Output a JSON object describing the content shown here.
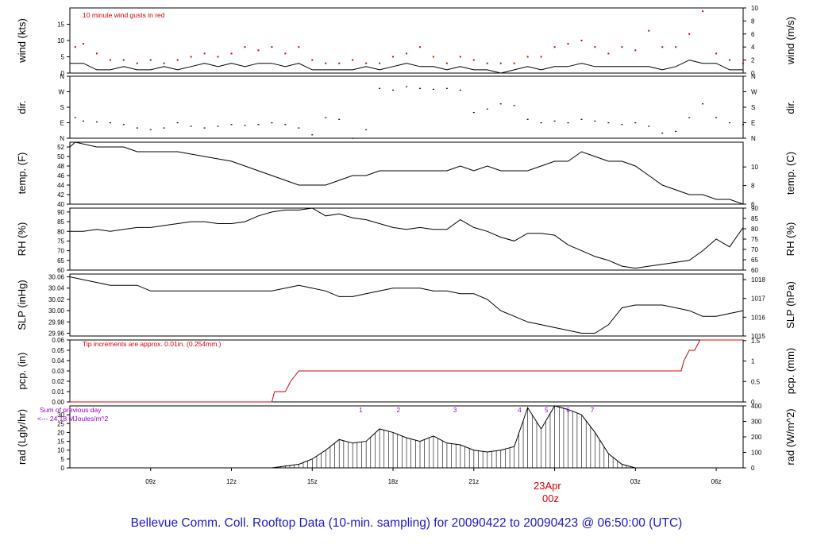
{
  "title": "Bellevue Comm. Coll. Rooftop Data (10-min. sampling) for 20090422  to  20090423 @ 06:50:00  (UTC)",
  "colors": {
    "frame": "#000000",
    "red": "#dd0000",
    "purple": "#9900cc",
    "title_blue": "#1a1acc"
  },
  "x_axis": {
    "hour_ticks": [
      "09z",
      "12z",
      "15z",
      "18z",
      "21z",
      "00z",
      "03z",
      "06z"
    ],
    "date_label": "23Apr",
    "date_tick": "00z"
  },
  "chart_data": [
    {
      "type": "line",
      "id": "wind",
      "ylabel": "wind (kts)",
      "ylabel_right": "wind (m/s)",
      "ylim": [
        0,
        20
      ],
      "yticks": [
        "0",
        "5",
        "10",
        "15"
      ],
      "yticks_right": [
        "0",
        "2",
        "4",
        "6",
        "8",
        "10"
      ],
      "annotation": "10  minute wind gusts in red",
      "series": [
        {
          "name": "wind speed (kts)",
          "hours": [
            6,
            6.5,
            7,
            7.5,
            8,
            8.5,
            9,
            9.5,
            10,
            10.5,
            11,
            11.5,
            12,
            12.5,
            13,
            13.5,
            14,
            14.5,
            15,
            15.5,
            16,
            16.5,
            17,
            17.5,
            18,
            18.5,
            19,
            19.5,
            20,
            20.5,
            21,
            21.5,
            22,
            22.5,
            23,
            23.5,
            24,
            24.5,
            25,
            25.5,
            26,
            26.5,
            27,
            27.5,
            28,
            28.5,
            29,
            29.5,
            30,
            30.5,
            31,
            31
          ],
          "values": [
            3,
            3,
            1,
            1,
            2,
            1,
            1,
            2,
            1,
            2,
            3,
            2,
            3,
            2,
            3,
            3,
            2,
            3,
            1,
            1,
            1,
            1,
            2,
            1,
            2,
            3,
            2,
            2,
            1,
            2,
            1,
            1,
            0,
            1,
            2,
            1,
            2,
            2,
            3,
            2,
            2,
            2,
            2,
            2,
            1,
            2,
            4,
            3,
            3,
            1,
            1,
            1
          ]
        },
        {
          "name": "10 minute wind gusts (kts)",
          "hours": [
            6.2,
            6.5,
            7,
            7.5,
            8,
            8.5,
            9,
            9.5,
            10,
            10.5,
            11,
            11.5,
            12,
            12.5,
            13,
            13.5,
            14,
            14.5,
            15,
            15.5,
            16,
            16.5,
            17,
            17.5,
            18,
            18.5,
            19,
            19.5,
            20,
            20.5,
            21,
            21.5,
            22,
            22.5,
            23,
            23.5,
            24,
            24.5,
            25,
            25.5,
            26,
            26.5,
            27,
            27.5,
            28,
            28.5,
            29,
            29.5,
            30,
            30.5,
            31
          ],
          "values": [
            8,
            9,
            6,
            4,
            4,
            3,
            4,
            3,
            4,
            5,
            6,
            5,
            6,
            8,
            7,
            8,
            6,
            8,
            4,
            3,
            3,
            4,
            3,
            3,
            5,
            6,
            8,
            5,
            3,
            5,
            4,
            3,
            3,
            3,
            5,
            5,
            8,
            9,
            10,
            8,
            6,
            8,
            7,
            13,
            8,
            8,
            12,
            19,
            6,
            4,
            3
          ]
        }
      ]
    },
    {
      "type": "scatter",
      "id": "dir",
      "ylabel": "dir.",
      "ylabel_right": "dir.",
      "ylim": [
        0,
        360
      ],
      "yticks": [
        "N",
        "E",
        "S",
        "W",
        "N"
      ],
      "series": [
        {
          "name": "wind direction (deg)",
          "hours": [
            6.2,
            6.5,
            7,
            7.5,
            8,
            8.5,
            9,
            9.5,
            10,
            10.5,
            11,
            11.5,
            12,
            12.5,
            13,
            13.5,
            14,
            14.5,
            15,
            15.5,
            16,
            16.5,
            17,
            17.5,
            18,
            18.5,
            19,
            19.5,
            20,
            20.5,
            21,
            21.5,
            22,
            22.5,
            23,
            23.5,
            24,
            24.5,
            25,
            25.5,
            26,
            26.5,
            27,
            27.5,
            28,
            28.5,
            29,
            29.5,
            30,
            30.5,
            31
          ],
          "values": [
            120,
            100,
            95,
            90,
            80,
            60,
            50,
            60,
            90,
            70,
            60,
            70,
            80,
            75,
            80,
            90,
            80,
            60,
            20,
            120,
            110,
            0,
            50,
            290,
            280,
            300,
            290,
            285,
            290,
            280,
            150,
            170,
            200,
            190,
            110,
            90,
            100,
            90,
            110,
            100,
            90,
            80,
            90,
            70,
            30,
            40,
            120,
            200,
            120,
            90,
            80
          ]
        }
      ]
    },
    {
      "type": "line",
      "id": "temp",
      "ylabel": "temp. (F)",
      "ylabel_right": "temp. (C)",
      "ylim": [
        40,
        53
      ],
      "yticks": [
        "40",
        "42",
        "44",
        "46",
        "48",
        "50",
        "52"
      ],
      "yticks_right": [
        "6",
        "8",
        "10"
      ],
      "series": [
        {
          "name": "temperature (F)",
          "hours": [
            6,
            6.2,
            7,
            8,
            8.5,
            10,
            11,
            12,
            12.5,
            13,
            13.5,
            14,
            14.5,
            15,
            15.5,
            16,
            16.5,
            17,
            17.5,
            18,
            18.5,
            19,
            19.5,
            20,
            20.5,
            21,
            21.5,
            22,
            22.5,
            23,
            23.5,
            24,
            24.5,
            25,
            25.5,
            26,
            26.5,
            27,
            27.5,
            28,
            28.5,
            29,
            29.5,
            30,
            30.5,
            31
          ],
          "values": [
            52,
            53,
            52,
            52,
            51,
            51,
            50,
            49,
            48,
            47,
            46,
            45,
            44,
            44,
            44,
            45,
            46,
            46,
            47,
            47,
            47,
            47,
            47,
            47,
            48,
            47,
            48,
            47,
            47,
            47,
            48,
            49,
            49,
            51,
            50,
            49,
            49,
            48,
            46,
            44,
            43,
            42,
            42,
            41,
            41,
            40
          ]
        }
      ]
    },
    {
      "type": "line",
      "id": "rh",
      "ylabel": "RH (%)",
      "ylabel_right": "RH (%)",
      "ylim": [
        60,
        92
      ],
      "yticks": [
        "60",
        "65",
        "70",
        "75",
        "80",
        "85",
        "90"
      ],
      "yticks_right": [
        "60",
        "65",
        "70",
        "75",
        "80",
        "85",
        "90"
      ],
      "series": [
        {
          "name": "relative humidity (%)",
          "hours": [
            6,
            6.5,
            7,
            7.5,
            8,
            8.5,
            9,
            9.5,
            10,
            10.5,
            11,
            11.5,
            12,
            12.5,
            13,
            13.5,
            14,
            14.5,
            15,
            15.5,
            16,
            16.5,
            17,
            17.5,
            18,
            18.5,
            19,
            19.5,
            20,
            20.5,
            21,
            21.5,
            22,
            22.5,
            23,
            23.5,
            24,
            24.5,
            25,
            25.5,
            26,
            26.5,
            27,
            27.5,
            28,
            28.5,
            29,
            29.5,
            30,
            30.5,
            31
          ],
          "values": [
            80,
            80,
            81,
            80,
            81,
            82,
            82,
            83,
            84,
            85,
            85,
            84,
            84,
            85,
            88,
            90,
            91,
            91,
            92,
            88,
            89,
            87,
            86,
            84,
            82,
            81,
            82,
            81,
            81,
            86,
            82,
            80,
            77,
            75,
            79,
            79,
            78,
            73,
            70,
            67,
            65,
            62,
            61,
            62,
            63,
            64,
            65,
            70,
            76,
            72,
            82
          ]
        }
      ]
    },
    {
      "type": "line",
      "id": "slp",
      "ylabel": "SLP (inHg)",
      "ylabel_right": "SLP (hPa)",
      "ylim": [
        29.955,
        30.065
      ],
      "yticks": [
        "29.96",
        "29.98",
        "30.00",
        "30.02",
        "30.04",
        "30.06"
      ],
      "yticks_right": [
        "1015",
        "1016",
        "1017",
        "1018"
      ],
      "series": [
        {
          "name": "sea level pressure (inHg)",
          "hours": [
            6,
            6.5,
            7,
            7.5,
            8,
            8.5,
            9,
            9.5,
            10,
            10.5,
            11,
            11.5,
            12,
            12.5,
            13,
            13.5,
            14,
            14.5,
            15,
            15.5,
            16,
            16.5,
            17,
            17.5,
            18,
            18.5,
            19,
            19.5,
            20,
            20.5,
            21,
            21.5,
            22,
            22.5,
            23,
            23.5,
            24,
            24.5,
            25,
            25.5,
            26,
            26.5,
            27,
            27.5,
            28,
            28.5,
            29,
            29.5,
            30,
            30.5,
            31
          ],
          "values": [
            30.06,
            30.055,
            30.05,
            30.045,
            30.045,
            30.045,
            30.035,
            30.035,
            30.035,
            30.035,
            30.035,
            30.035,
            30.035,
            30.035,
            30.035,
            30.035,
            30.04,
            30.045,
            30.04,
            30.035,
            30.025,
            30.025,
            30.03,
            30.035,
            30.04,
            30.04,
            30.04,
            30.035,
            30.035,
            30.03,
            30.03,
            30.02,
            30.0,
            29.99,
            29.98,
            29.975,
            29.97,
            29.965,
            29.96,
            29.96,
            29.975,
            30.005,
            30.01,
            30.01,
            30.01,
            30.005,
            30.0,
            29.99,
            29.99,
            29.995,
            30.0
          ]
        }
      ]
    },
    {
      "type": "line",
      "id": "pcp",
      "ylabel": "pcp. (in)",
      "ylabel_right": "pcp. (mm)",
      "ylim": [
        0,
        0.06
      ],
      "yticks": [
        "0.00",
        "0.01",
        "0.02",
        "0.03",
        "0.04",
        "0.05",
        "0.06"
      ],
      "yticks_right": [
        "0",
        "0.5",
        "1",
        "1.5"
      ],
      "annotation": "Tip increments are approx. 0.01in. (0.254mm.)",
      "series": [
        {
          "name": "precipitation (in)",
          "hours": [
            6,
            13.5,
            13.6,
            13.7,
            14,
            14.2,
            14.5,
            28.7,
            28.8,
            29.0,
            29.2,
            29.4,
            29.8,
            31
          ],
          "values": [
            0,
            0,
            0.01,
            0.01,
            0.01,
            0.02,
            0.03,
            0.03,
            0.04,
            0.05,
            0.05,
            0.06,
            0.06,
            0.06
          ]
        }
      ]
    },
    {
      "type": "area",
      "id": "rad",
      "ylabel": "rad (Lgly/hr)",
      "ylabel_right": "rad (W/m^2)",
      "ylim": [
        0,
        35
      ],
      "yticks": [
        "0",
        "5",
        "10",
        "15",
        "20",
        "25",
        "30"
      ],
      "yticks_right": [
        "0",
        "100",
        "200",
        "300",
        "400"
      ],
      "annotations": [
        "Sum of previous day",
        "<--- 24.18 MJoules/m^2"
      ],
      "hour_markers": [
        "1",
        "2",
        "3",
        "4",
        "5",
        "6",
        "7"
      ],
      "series": [
        {
          "name": "solar radiation (Lgly/hr)",
          "hours": [
            13.5,
            14,
            14.5,
            15,
            15.5,
            16,
            16.5,
            17,
            17.5,
            18,
            18.5,
            19,
            19.5,
            20,
            20.5,
            21,
            21.5,
            22,
            22.5,
            23,
            23.5,
            24,
            24.5,
            25,
            25.5,
            26,
            26.5,
            27
          ],
          "values": [
            0,
            1,
            2,
            5,
            10,
            16,
            14,
            15,
            22,
            20,
            17,
            15,
            18,
            14,
            13,
            10,
            9,
            10,
            12,
            34,
            22,
            35,
            33,
            30,
            20,
            8,
            2,
            0
          ]
        }
      ]
    }
  ]
}
